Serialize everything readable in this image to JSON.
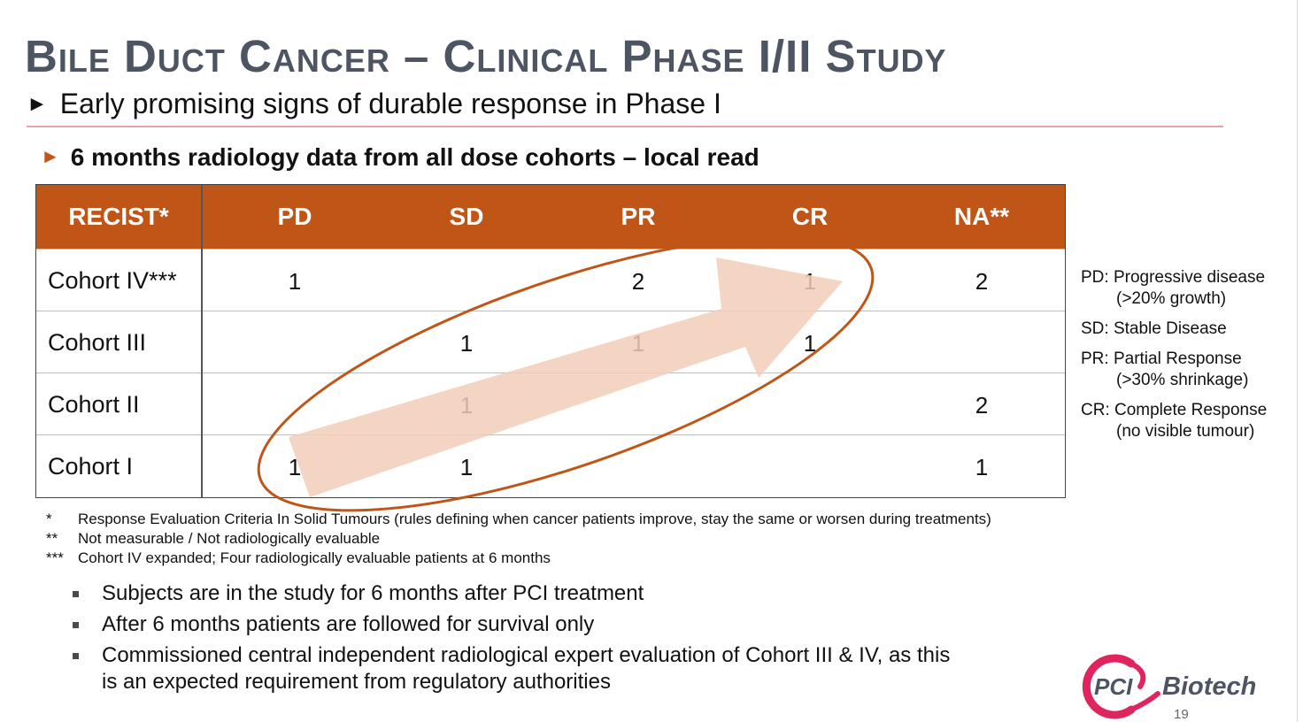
{
  "slide": {
    "title": "Bile Duct Cancer – Clinical Phase I/II Study",
    "subtitle": "Early promising signs of durable response in Phase I",
    "section_heading": "6 months radiology data from all dose cohorts – local read",
    "page_number": "19"
  },
  "table": {
    "headers": [
      "RECIST*",
      "PD",
      "SD",
      "PR",
      "CR",
      "NA**"
    ],
    "rows": [
      {
        "label": "Cohort IV***",
        "cells": [
          "1",
          "",
          "2",
          "1",
          "2"
        ]
      },
      {
        "label": "Cohort III",
        "cells": [
          "",
          "1",
          "1",
          "1",
          ""
        ]
      },
      {
        "label": "Cohort II",
        "cells": [
          "",
          "1",
          "",
          "",
          "2"
        ]
      },
      {
        "label": "Cohort I",
        "cells": [
          "1",
          "1",
          "",
          "",
          "1"
        ]
      }
    ]
  },
  "legend": [
    {
      "line1": "PD: Progressive disease",
      "line2": "(>20% growth)"
    },
    {
      "line1": "SD: Stable Disease",
      "line2": ""
    },
    {
      "line1": "PR: Partial Response",
      "line2": "(>30% shrinkage)"
    },
    {
      "line1": "CR: Complete Response",
      "line2": "(no visible tumour)"
    }
  ],
  "footnotes": [
    {
      "mark": "*",
      "text": "Response Evaluation Criteria In Solid Tumours (rules defining when cancer patients improve, stay the same or worsen during treatments)"
    },
    {
      "mark": "**",
      "text": "Not measurable / Not radiologically evaluable"
    },
    {
      "mark": "***",
      "text": "Cohort IV expanded;  Four radiologically evaluable patients at 6 months"
    }
  ],
  "bullets": [
    {
      "line1": "Subjects are in the study for 6 months after PCI treatment",
      "line2": ""
    },
    {
      "line1": "After 6 months patients are followed for survival only",
      "line2": ""
    },
    {
      "line1": "Commissioned central independent radiological expert evaluation of Cohort III & IV, as this",
      "line2": "is an expected requirement from regulatory authorities"
    }
  ],
  "logo": {
    "left_text": "PCI",
    "right_text": "Biotech"
  },
  "colors": {
    "accent": "#bf5618",
    "title": "#4d5563",
    "rule": "#e9a3a8",
    "arrow": "#f2cdb8",
    "logo_ring": "#e0245e"
  }
}
